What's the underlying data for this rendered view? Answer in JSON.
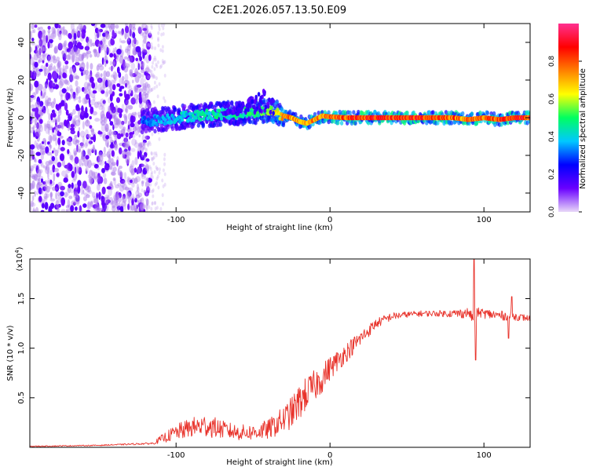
{
  "title": "C2E1.2026.057.13.50.E09",
  "chart_data": [
    {
      "type": "heatmap",
      "title": "C2E1.2026.057.13.50.E09",
      "xlabel": "Height of straight line (km)",
      "ylabel": "Frequency (Hz)",
      "xlim": [
        -195,
        130
      ],
      "ylim": [
        -50,
        50
      ],
      "xticks": [
        -100,
        0,
        100
      ],
      "yticks": [
        40,
        20,
        0,
        -20,
        -40
      ],
      "colorbar": {
        "label": "Normalized spectral amplitude",
        "range": [
          0,
          1
        ],
        "ticks": [
          "0.0",
          "0.2",
          "0.4",
          "0.6",
          "0.8"
        ],
        "colors": [
          "#e8d8f8",
          "#6a00ff",
          "#0000ff",
          "#00c8ff",
          "#00ff60",
          "#ffff00",
          "#ff8000",
          "#ff0000",
          "#ff3090"
        ]
      },
      "ridge": {
        "x": [
          -122,
          -110,
          -100,
          -90,
          -80,
          -70,
          -60,
          -50,
          -40,
          -35,
          -30,
          -25,
          -20,
          -15,
          -10,
          -5,
          0,
          10,
          20,
          40,
          60,
          80,
          90,
          100,
          110,
          120,
          130
        ],
        "y": [
          -2,
          -1,
          0,
          1,
          1.5,
          2,
          2.5,
          3,
          4,
          3,
          1,
          0,
          -2,
          -3,
          -1,
          1,
          0.5,
          0,
          0,
          0,
          0,
          0,
          -1,
          0,
          -1,
          0,
          0
        ],
        "amplitude": [
          0.35,
          0.4,
          0.45,
          0.45,
          0.5,
          0.5,
          0.5,
          0.55,
          0.6,
          0.75,
          0.8,
          0.85,
          0.8,
          0.8,
          0.85,
          0.85,
          0.9,
          0.9,
          0.95,
          0.95,
          0.95,
          0.9,
          0.85,
          0.9,
          0.9,
          0.95,
          0.95
        ]
      }
    },
    {
      "type": "line",
      "xlabel": "Height of straight line (km)",
      "ylabel": "SNR (10 * v/v)",
      "yscale_label": "(x10",
      "yscale_exp": "4",
      "xlim": [
        -195,
        130
      ],
      "ylim": [
        0,
        1.9
      ],
      "xticks": [
        -100,
        0,
        100
      ],
      "yticks": [
        1.5,
        1.0,
        0.5
      ],
      "ytick_labels": [
        "1.5",
        "1.0",
        "0.5"
      ],
      "color": "#e8322a",
      "series": [
        {
          "name": "SNR",
          "x": [
            -195,
            -150,
            -115,
            -110,
            -100,
            -90,
            -80,
            -70,
            -60,
            -50,
            -40,
            -30,
            -25,
            -20,
            -15,
            -10,
            -5,
            0,
            10,
            20,
            30,
            40,
            50,
            60,
            70,
            80,
            85,
            90,
            93,
            95,
            97,
            100,
            110,
            120,
            130
          ],
          "y": [
            0.01,
            0.02,
            0.04,
            0.08,
            0.15,
            0.2,
            0.22,
            0.18,
            0.15,
            0.15,
            0.18,
            0.28,
            0.35,
            0.45,
            0.55,
            0.62,
            0.7,
            0.8,
            0.95,
            1.1,
            1.25,
            1.32,
            1.34,
            1.35,
            1.35,
            1.35,
            1.35,
            1.36,
            1.3,
            1.35,
            1.36,
            1.35,
            1.33,
            1.32,
            1.3
          ],
          "noise": [
            0.005,
            0.005,
            0.01,
            0.04,
            0.08,
            0.1,
            0.12,
            0.09,
            0.08,
            0.08,
            0.1,
            0.14,
            0.16,
            0.18,
            0.17,
            0.16,
            0.15,
            0.12,
            0.1,
            0.08,
            0.05,
            0.04,
            0.03,
            0.03,
            0.03,
            0.04,
            0.05,
            0.05,
            0.05,
            0.05,
            0.05,
            0.05,
            0.05,
            0.04,
            0.03
          ]
        }
      ],
      "spikes": [
        {
          "x": 93.5,
          "y": 1.92
        },
        {
          "x": 94.5,
          "y": 0.88
        },
        {
          "x": 118,
          "y": 1.52
        },
        {
          "x": 116,
          "y": 1.1
        }
      ]
    }
  ]
}
